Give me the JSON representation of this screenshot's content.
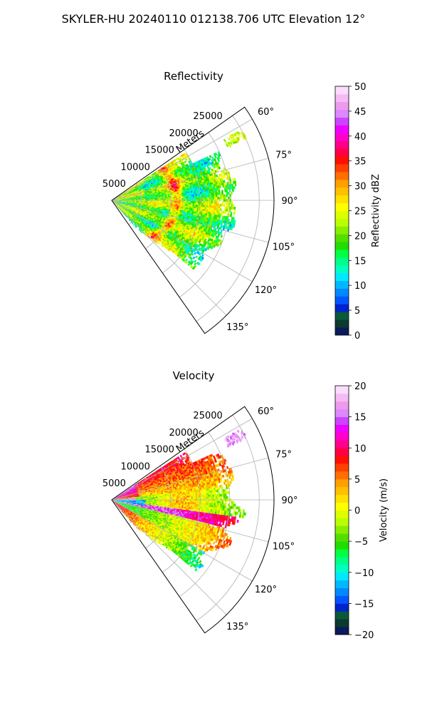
{
  "figure_title": "SKYLER-HU  20240110  012138.706 UTC Elevation 12°",
  "chart_data": [
    {
      "type": "heatmap",
      "projection": "polar-sector",
      "title": "Reflectivity",
      "range_label": "Meters",
      "range_ticks": [
        "5000",
        "10000",
        "15000",
        "20000",
        "25000"
      ],
      "range_max_m": 27500,
      "azimuth_ticks": [
        "60°",
        "75°",
        "90°",
        "105°",
        "120°",
        "135°"
      ],
      "azimuth_range_deg": [
        55,
        145
      ],
      "data_extent_m": 22000,
      "colorbar": {
        "label": "Reflectivity dBZ",
        "min": 0,
        "max": 50,
        "ticks": [
          "0",
          "5",
          "10",
          "15",
          "20",
          "25",
          "30",
          "35",
          "40",
          "45",
          "50"
        ],
        "colors": [
          "#0a1a5a",
          "#0b3a2e",
          "#0a5a3a",
          "#0022cc",
          "#0055ff",
          "#0088ff",
          "#00b8ff",
          "#00e8ff",
          "#00ffc0",
          "#00ff88",
          "#00ff40",
          "#22dd00",
          "#55dd00",
          "#88ee00",
          "#bbff00",
          "#ddff00",
          "#ffff00",
          "#ffe000",
          "#ffc000",
          "#ffa000",
          "#ff7000",
          "#ff4000",
          "#ff1000",
          "#ff0044",
          "#ff0088",
          "#ff00cc",
          "#ee00ff",
          "#cc44ff",
          "#dd88ff",
          "#ee99ee",
          "#f4bbf4",
          "#fcdcfc"
        ]
      }
    },
    {
      "type": "heatmap",
      "projection": "polar-sector",
      "title": "Velocity",
      "range_label": "Meters",
      "range_ticks": [
        "5000",
        "10000",
        "15000",
        "20000",
        "25000"
      ],
      "range_max_m": 27500,
      "azimuth_ticks": [
        "60°",
        "75°",
        "90°",
        "105°",
        "120°",
        "135°"
      ],
      "azimuth_range_deg": [
        55,
        145
      ],
      "data_extent_m": 22000,
      "colorbar": {
        "label": "Velocity (m/s)",
        "min": -20,
        "max": 20,
        "ticks": [
          "−20",
          "−15",
          "−10",
          "−5",
          "0",
          "5",
          "10",
          "15",
          "20"
        ],
        "colors": [
          "#0a1a5a",
          "#0b3a2e",
          "#0a5a3a",
          "#0022cc",
          "#0055ff",
          "#0088ff",
          "#00b8ff",
          "#00e8ff",
          "#00ffc0",
          "#00ff88",
          "#00ff40",
          "#22dd00",
          "#55dd00",
          "#88ee00",
          "#bbff00",
          "#ddff00",
          "#ffff00",
          "#ffe000",
          "#ffc000",
          "#ffa000",
          "#ff7000",
          "#ff4000",
          "#ff1000",
          "#ff0044",
          "#ff0088",
          "#ff00cc",
          "#ee00ff",
          "#cc44ff",
          "#dd88ff",
          "#ee99ee",
          "#f4bbf4",
          "#fcdcfc"
        ]
      }
    }
  ]
}
